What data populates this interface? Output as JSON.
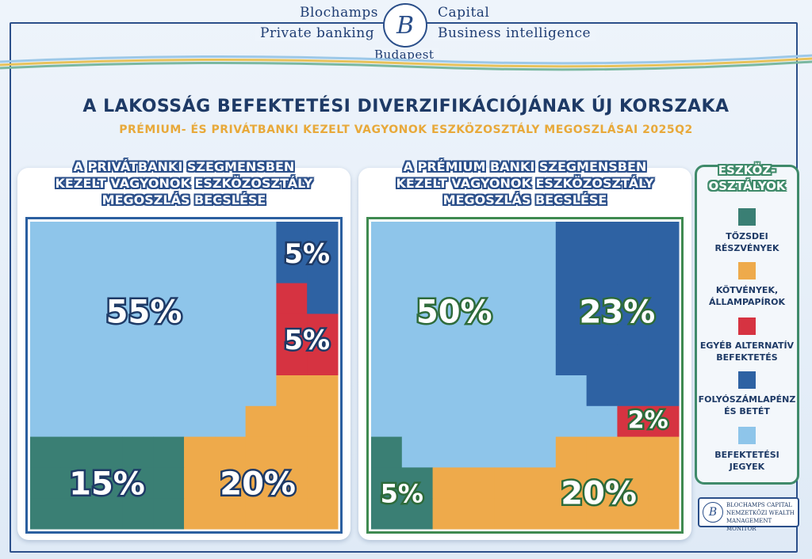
{
  "header": {
    "left_top": "Blochamps",
    "right_top": "Capital",
    "left_bottom": "Private banking",
    "right_bottom": "Business intelligence",
    "city": "Budapest",
    "logo_letter": "B"
  },
  "title": "A LAKOSSÁG BEFEKTETÉSI DIVERZIFIKÁCIÓJÁNAK ÚJ KORSZAKA",
  "subtitle": "PRÉMIUM- ÉS PRIVÁTBANKI KEZELT VAGYONOK ESZKÖZOSZTÁLY MEGOSZLÁSAI 2025Q2",
  "colors": {
    "stocks": "#3a7f74",
    "bonds": "#eeaa4b",
    "alternative": "#d63341",
    "deposits": "#2e62a3",
    "funds": "#8ec5ea",
    "private_frame": "#2b5fa0",
    "premium_frame": "#3f8a50"
  },
  "chart_data": [
    {
      "type": "waffle",
      "title_lines": [
        "A PRIVÁTBANKI SZEGMENSBEN",
        "KEZELT VAGYONOK ESZKÖZOSZTÁLY",
        "MEGOSZLÁS BECSLÉSE"
      ],
      "categories": [
        "Tőzsdei részvények",
        "Kötvények, állampapírok",
        "Egyéb alternatív befektetés",
        "Folyószámlapénz és betét",
        "Befektetési jegyek"
      ],
      "values": [
        15,
        20,
        5,
        5,
        55
      ],
      "labels": [
        "15%",
        "20%",
        "5%",
        "5%",
        "55%"
      ]
    },
    {
      "type": "waffle",
      "title_lines": [
        "A PRÉMIUM BANKI SZEGMENSBEN",
        "KEZELT VAGYONOK ESZKÖZOSZTÁLY",
        "MEGOSZLÁS BECSLÉSE"
      ],
      "categories": [
        "Tőzsdei részvények",
        "Kötvények, állampapírok",
        "Egyéb alternatív befektetés",
        "Folyószámlapénz és betét",
        "Befektetési jegyek"
      ],
      "values": [
        5,
        20,
        2,
        23,
        50
      ],
      "labels": [
        "5%",
        "20%",
        "2%",
        "23%",
        "50%"
      ]
    }
  ],
  "legend": {
    "heading": [
      "ESZKÖZ-",
      "OSZTÁLYOK"
    ],
    "items": [
      {
        "key": "stocks",
        "lines": [
          "TŐZSDEI",
          "RÉSZVÉNYEK"
        ]
      },
      {
        "key": "bonds",
        "lines": [
          "KÖTVÉNYEK,",
          "ÁLLAMPAPÍROK"
        ]
      },
      {
        "key": "alternative",
        "lines": [
          "EGYÉB ALTERNATÍV",
          "BEFEKTETÉS"
        ]
      },
      {
        "key": "deposits",
        "lines": [
          "FOLYÓSZÁMLAPÉNZ",
          "ÉS BETÉT"
        ]
      },
      {
        "key": "funds",
        "lines": [
          "BEFEKTETÉSI",
          "JEGYEK"
        ]
      }
    ]
  },
  "badge": {
    "letter": "B",
    "lines": [
      "BLOCHAMPS CAPITAL",
      "NEMZETKÖZI WEALTH",
      "MANAGEMENT MONITOR"
    ]
  }
}
